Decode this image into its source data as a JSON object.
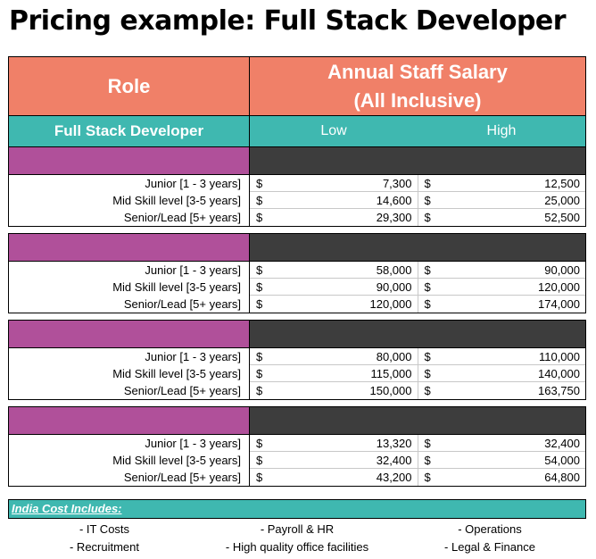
{
  "title": "Pricing example: Full Stack Developer",
  "header": {
    "role": "Role",
    "salary_line1": "Annual Staff Salary",
    "salary_line2": "(All Inclusive)",
    "role_name": "Full Stack Developer",
    "low": "Low",
    "high": "High"
  },
  "currency": "$",
  "groups": [
    {
      "rows": [
        {
          "label": "Junior [1 - 3 years]",
          "low": "7,300",
          "high": "12,500"
        },
        {
          "label": "Mid Skill level [3-5 years]",
          "low": "14,600",
          "high": "25,000"
        },
        {
          "label": "Senior/Lead [5+ years]",
          "low": "29,300",
          "high": "52,500"
        }
      ]
    },
    {
      "rows": [
        {
          "label": "Junior [1 - 3 years]",
          "low": "58,000",
          "high": "90,000"
        },
        {
          "label": "Mid Skill level [3-5 years]",
          "low": "90,000",
          "high": "120,000"
        },
        {
          "label": "Senior/Lead [5+ years]",
          "low": "120,000",
          "high": "174,000"
        }
      ]
    },
    {
      "rows": [
        {
          "label": "Junior [1 - 3 years]",
          "low": "80,000",
          "high": "110,000"
        },
        {
          "label": "Mid Skill level [3-5 years]",
          "low": "115,000",
          "high": "140,000"
        },
        {
          "label": "Senior/Lead [5+ years]",
          "low": "150,000",
          "high": "163,750"
        }
      ]
    },
    {
      "rows": [
        {
          "label": "Junior [1 - 3 years]",
          "low": "13,320",
          "high": "32,400"
        },
        {
          "label": "Mid Skill level [3-5 years]",
          "low": "32,400",
          "high": "54,000"
        },
        {
          "label": "Senior/Lead [5+ years]",
          "low": "43,200",
          "high": "64,800"
        }
      ]
    }
  ],
  "includes": {
    "heading": "India Cost Includes:",
    "items": [
      "- IT Costs",
      "- Payroll & HR",
      "- Operations",
      "- Recruitment",
      "- High quality office facilities",
      "- Legal & Finance"
    ]
  },
  "colors": {
    "salmon": "#f08068",
    "teal": "#3fb8b0",
    "purple": "#b0509a",
    "dark": "#3d3d3d"
  }
}
